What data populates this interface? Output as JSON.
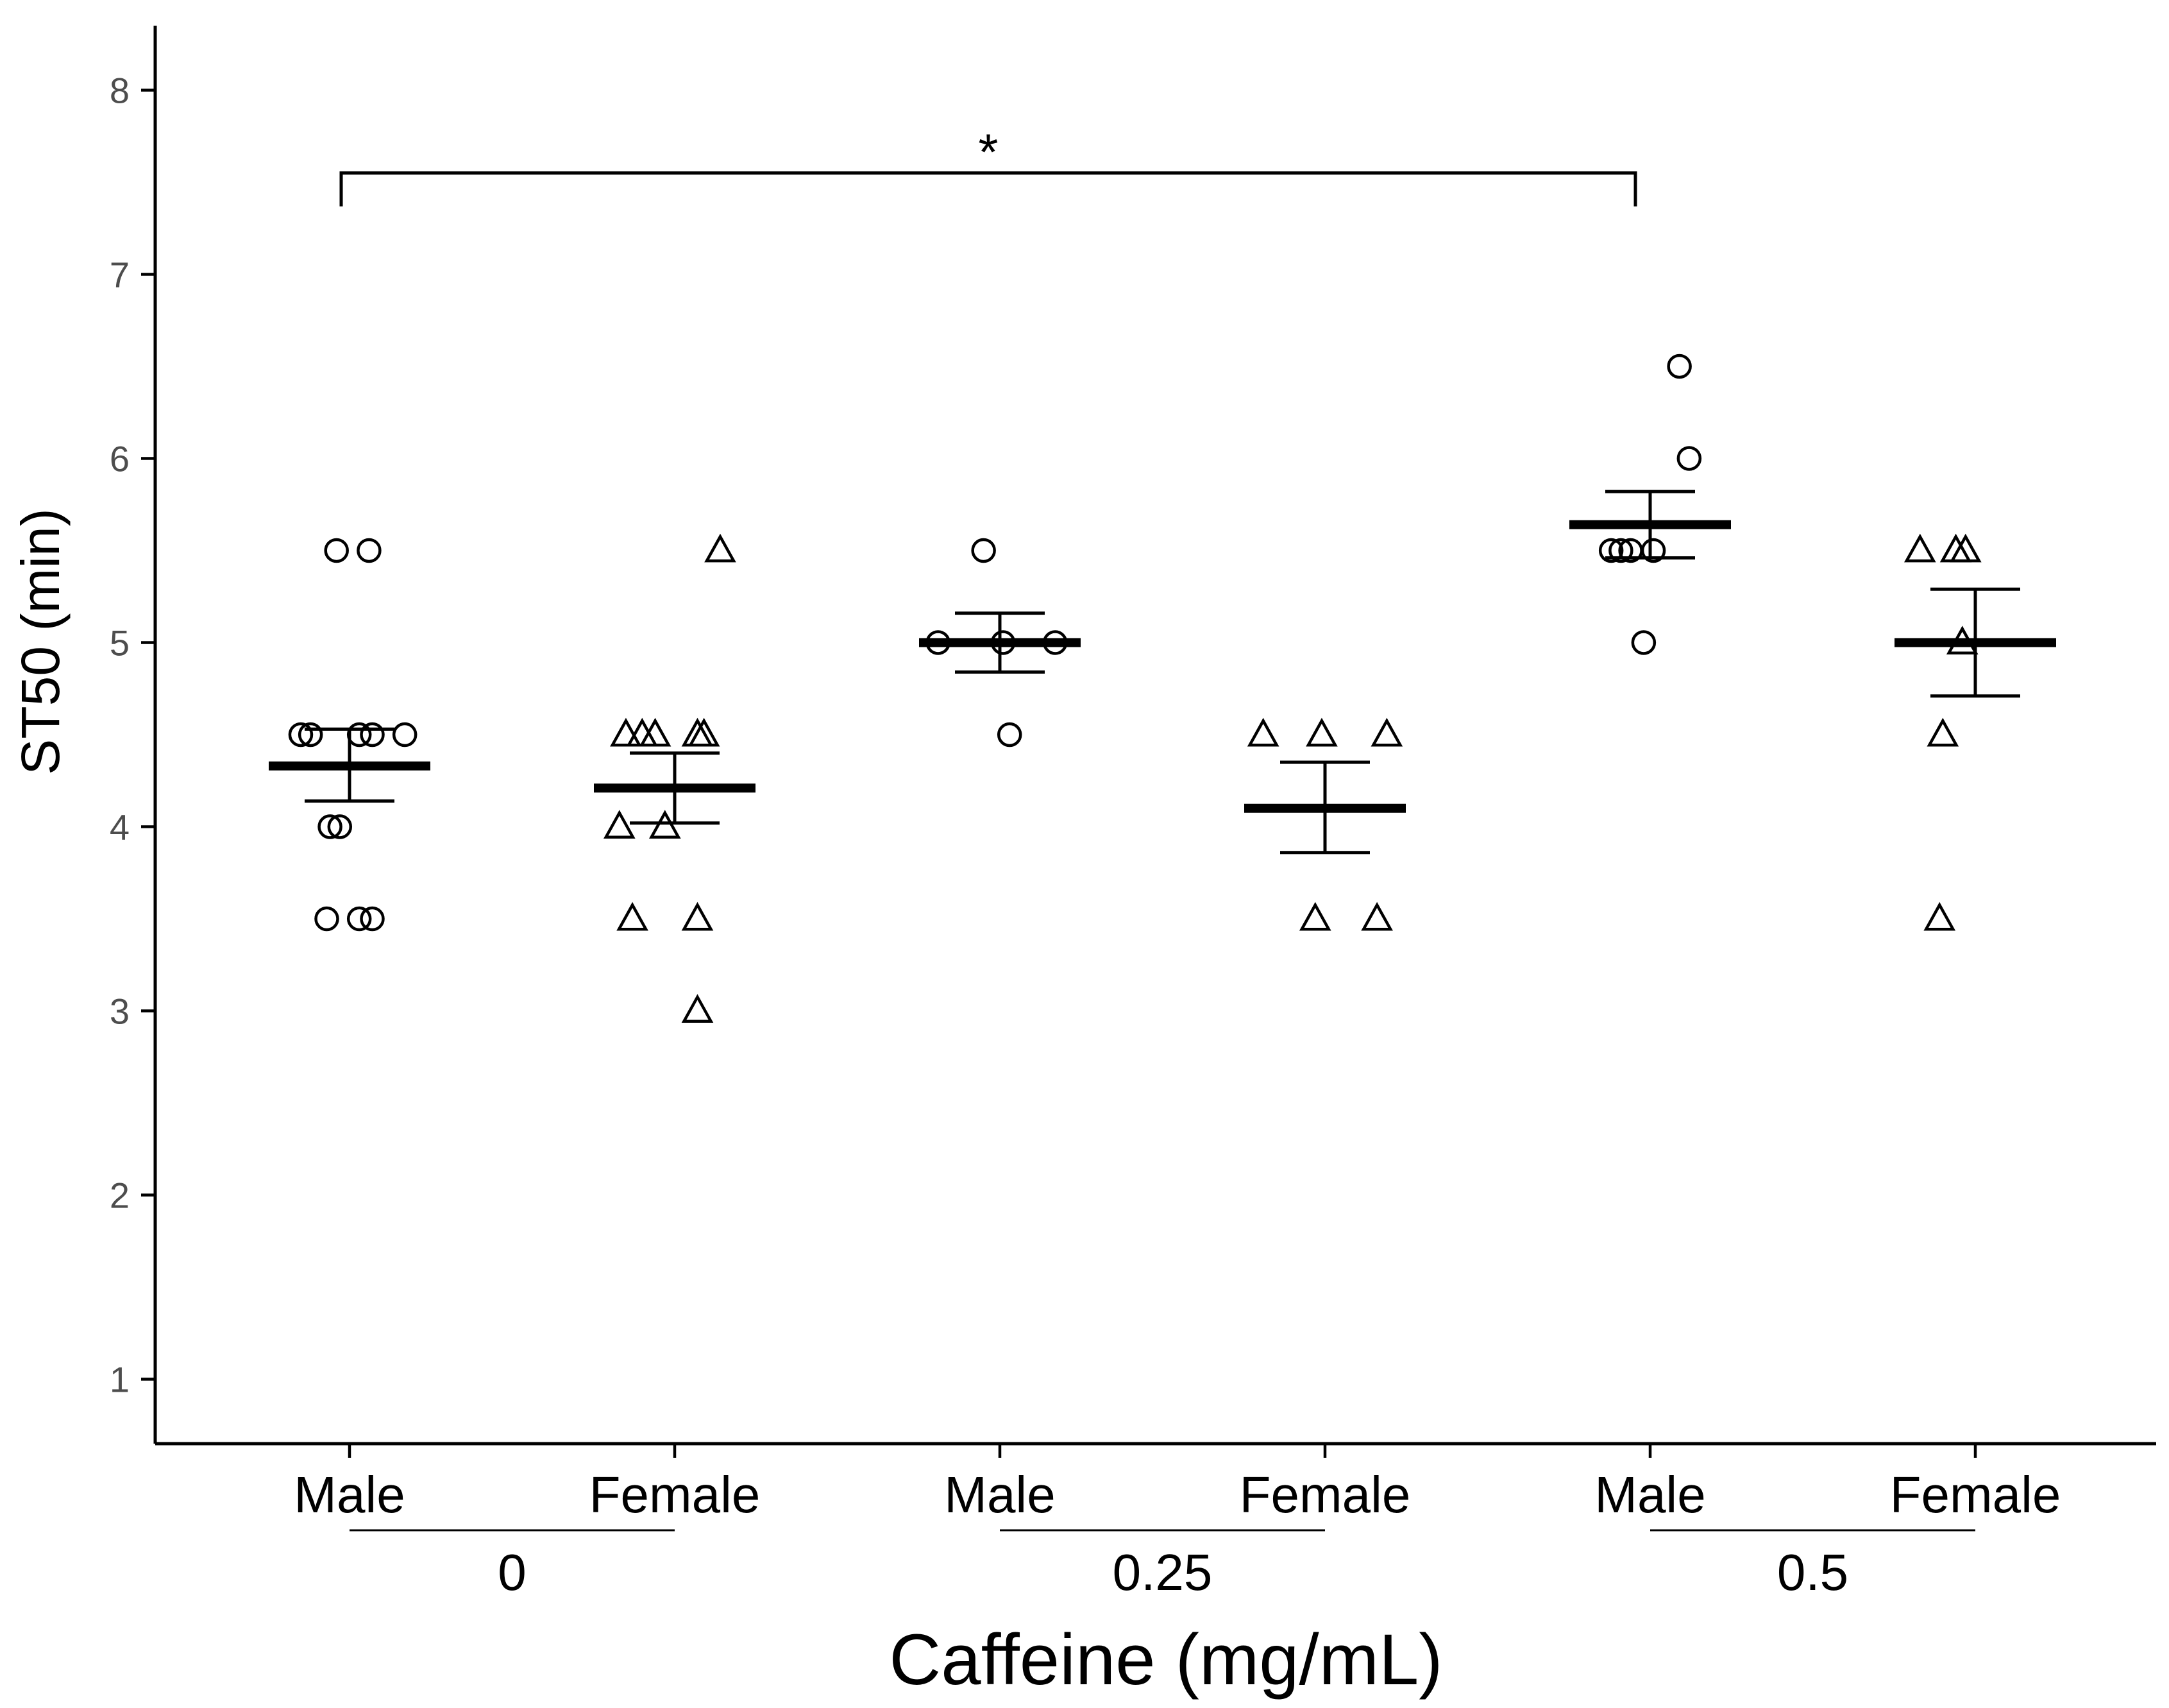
{
  "chart_data": {
    "type": "scatter",
    "title": "",
    "xlabel": "Caffeine (mg/mL)",
    "ylabel": "ST50 (min)",
    "ylim": [
      0.65,
      8.35
    ],
    "yticks": [
      1,
      2,
      3,
      4,
      5,
      6,
      7,
      8
    ],
    "grid": false,
    "legend": "none",
    "groups": [
      {
        "dose": "0",
        "label": "0"
      },
      {
        "dose": "0.25",
        "label": "0.25"
      },
      {
        "dose": "0.5",
        "label": "0.5"
      }
    ],
    "series": [
      {
        "name": "0 Male",
        "sex": "Male",
        "group": 0,
        "marker": "circle",
        "mean": 4.33,
        "se_low": 4.14,
        "se_high": 4.53,
        "points": [
          [
            -0.04,
            5.5
          ],
          [
            0.06,
            5.5
          ],
          [
            -0.15,
            4.5
          ],
          [
            -0.12,
            4.5
          ],
          [
            0.03,
            4.5
          ],
          [
            0.07,
            4.5
          ],
          [
            0.17,
            4.5
          ],
          [
            -0.06,
            4.0
          ],
          [
            -0.03,
            4.0
          ],
          [
            -0.07,
            3.5
          ],
          [
            0.03,
            3.5
          ],
          [
            0.07,
            3.5
          ]
        ]
      },
      {
        "name": "0 Female",
        "sex": "Female",
        "group": 0,
        "marker": "triangle",
        "mean": 4.21,
        "se_low": 4.02,
        "se_high": 4.4,
        "points": [
          [
            0.14,
            5.5
          ],
          [
            -0.15,
            4.5
          ],
          [
            -0.1,
            4.5
          ],
          [
            -0.06,
            4.5
          ],
          [
            0.07,
            4.5
          ],
          [
            0.09,
            4.5
          ],
          [
            -0.17,
            4.0
          ],
          [
            -0.03,
            4.0
          ],
          [
            -0.13,
            3.5
          ],
          [
            0.07,
            3.5
          ],
          [
            0.07,
            3.0
          ]
        ]
      },
      {
        "name": "0.25 Male",
        "sex": "Male",
        "group": 1,
        "marker": "circle",
        "mean": 5.0,
        "se_low": 4.84,
        "se_high": 5.16,
        "points": [
          [
            -0.05,
            5.5
          ],
          [
            -0.19,
            5.0
          ],
          [
            0.01,
            5.0
          ],
          [
            0.17,
            5.0
          ],
          [
            0.03,
            4.5
          ]
        ]
      },
      {
        "name": "0.25 Female",
        "sex": "Female",
        "group": 1,
        "marker": "triangle",
        "mean": 4.1,
        "se_low": 3.86,
        "se_high": 4.35,
        "points": [
          [
            -0.19,
            4.5
          ],
          [
            -0.01,
            4.5
          ],
          [
            0.19,
            4.5
          ],
          [
            -0.03,
            3.5
          ],
          [
            0.16,
            3.5
          ]
        ]
      },
      {
        "name": "0.5 Male",
        "sex": "Male",
        "group": 2,
        "marker": "circle",
        "mean": 5.64,
        "se_low": 5.46,
        "se_high": 5.82,
        "points": [
          [
            0.09,
            6.5
          ],
          [
            0.12,
            6.0
          ],
          [
            -0.12,
            5.5
          ],
          [
            -0.09,
            5.5
          ],
          [
            -0.06,
            5.5
          ],
          [
            0.01,
            5.5
          ],
          [
            -0.02,
            5.0
          ]
        ]
      },
      {
        "name": "0.5 Female",
        "sex": "Female",
        "group": 2,
        "marker": "triangle",
        "mean": 5.0,
        "se_low": 4.71,
        "se_high": 5.29,
        "points": [
          [
            -0.17,
            5.5
          ],
          [
            -0.06,
            5.5
          ],
          [
            -0.03,
            5.5
          ],
          [
            -0.04,
            5.0
          ],
          [
            -0.1,
            4.5
          ],
          [
            -0.11,
            3.5
          ]
        ]
      }
    ],
    "annotations": [
      {
        "type": "significance-bracket",
        "from_series": 0,
        "to_series": 4,
        "label": "*",
        "y": 7.55
      }
    ]
  }
}
